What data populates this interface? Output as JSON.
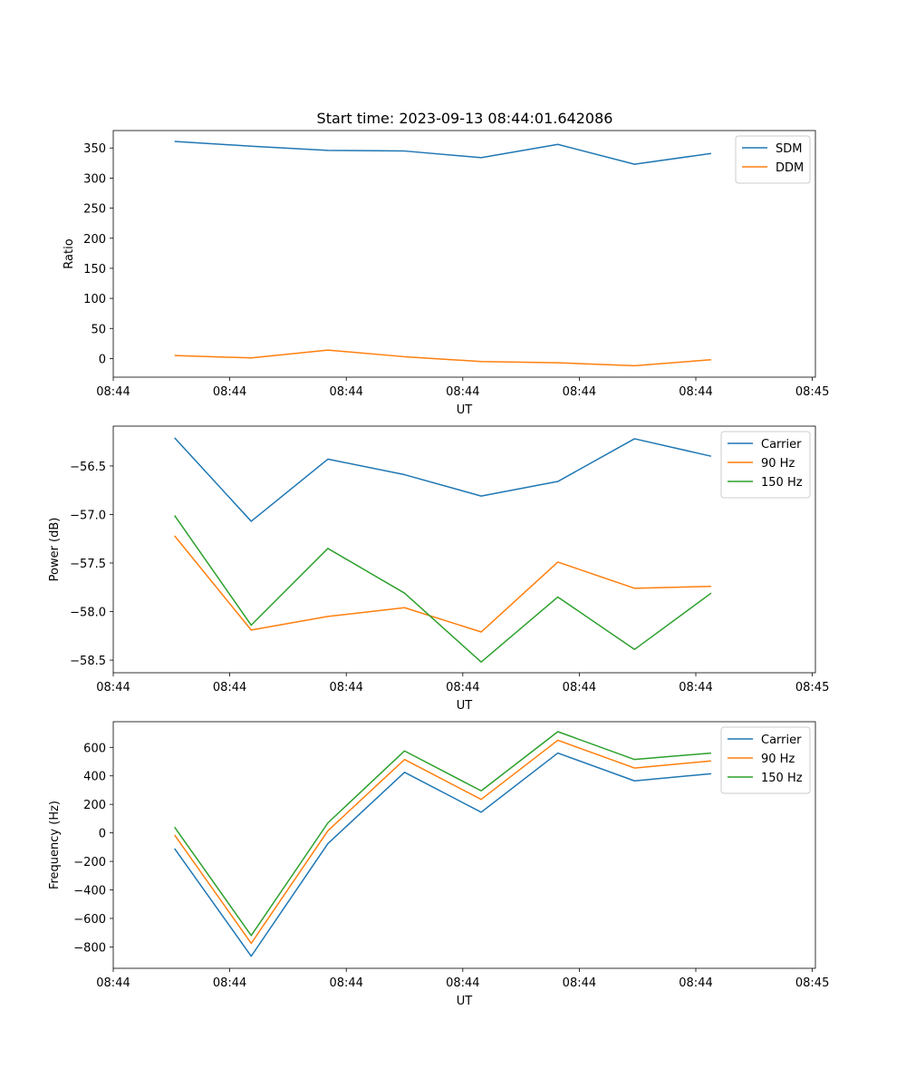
{
  "figure_title": "Start time: 2023-09-13 08:44:01.642086",
  "colors": {
    "blue": "#1f77b4",
    "orange": "#ff7f0e",
    "green": "#2ca02c"
  },
  "chart_data": [
    {
      "type": "line",
      "title": "Start time: 2023-09-13 08:44:01.642086",
      "xlabel": "UT",
      "ylabel": "Ratio",
      "x": [
        1,
        2,
        3,
        4,
        5,
        6,
        7,
        8
      ],
      "xlim": [
        0.2,
        9.36
      ],
      "xticks": [
        0.2,
        1.72,
        3.24,
        4.76,
        6.28,
        7.8,
        9.32
      ],
      "xtick_labels": [
        "08:44",
        "08:44",
        "08:44",
        "08:44",
        "08:44",
        "08:44",
        "08:45"
      ],
      "ylim": [
        -31,
        379
      ],
      "yticks": [
        0,
        50,
        100,
        150,
        200,
        250,
        300,
        350
      ],
      "ytick_labels": [
        "0",
        "50",
        "100",
        "150",
        "200",
        "250",
        "300",
        "350"
      ],
      "legend_position": "top-right",
      "series": [
        {
          "name": "SDM",
          "color": "#1f77b4",
          "values": [
            361,
            353,
            346,
            345,
            334,
            356,
            323,
            341
          ]
        },
        {
          "name": "DDM",
          "color": "#ff7f0e",
          "values": [
            5,
            1,
            14,
            3,
            -5,
            -7,
            -12,
            -2
          ]
        }
      ]
    },
    {
      "type": "line",
      "title": "",
      "xlabel": "UT",
      "ylabel": "Power (dB)",
      "x": [
        1,
        2,
        3,
        4,
        5,
        6,
        7,
        8
      ],
      "xlim": [
        0.2,
        9.36
      ],
      "xticks": [
        0.2,
        1.72,
        3.24,
        4.76,
        6.28,
        7.8,
        9.32
      ],
      "xtick_labels": [
        "08:44",
        "08:44",
        "08:44",
        "08:44",
        "08:44",
        "08:44",
        "08:45"
      ],
      "ylim": [
        -58.63,
        -56.09
      ],
      "yticks": [
        -58.5,
        -58.0,
        -57.5,
        -57.0,
        -56.5
      ],
      "ytick_labels": [
        "−58.5",
        "−58.0",
        "−57.5",
        "−57.0",
        "−56.5"
      ],
      "legend_position": "top-right",
      "series": [
        {
          "name": "Carrier",
          "color": "#1f77b4",
          "values": [
            -56.21,
            -57.07,
            -56.43,
            -56.59,
            -56.81,
            -56.66,
            -56.22,
            -56.4
          ]
        },
        {
          "name": "90 Hz",
          "color": "#ff7f0e",
          "values": [
            -57.22,
            -58.19,
            -58.05,
            -57.96,
            -58.21,
            -57.49,
            -57.76,
            -57.74
          ]
        },
        {
          "name": "150 Hz",
          "color": "#2ca02c",
          "values": [
            -57.01,
            -58.14,
            -57.35,
            -57.81,
            -58.52,
            -57.85,
            -58.39,
            -57.81
          ]
        }
      ]
    },
    {
      "type": "line",
      "title": "",
      "xlabel": "UT",
      "ylabel": "Frequency (Hz)",
      "x": [
        1,
        2,
        3,
        4,
        5,
        6,
        7,
        8
      ],
      "xlim": [
        0.2,
        9.36
      ],
      "xticks": [
        0.2,
        1.72,
        3.24,
        4.76,
        6.28,
        7.8,
        9.32
      ],
      "xtick_labels": [
        "08:44",
        "08:44",
        "08:44",
        "08:44",
        "08:44",
        "08:44",
        "08:45"
      ],
      "ylim": [
        -950,
        780
      ],
      "yticks": [
        -800,
        -600,
        -400,
        -200,
        0,
        200,
        400,
        600
      ],
      "ytick_labels": [
        "−800",
        "−600",
        "−400",
        "−200",
        "0",
        "200",
        "400",
        "600"
      ],
      "legend_position": "top-right",
      "series": [
        {
          "name": "Carrier",
          "color": "#1f77b4",
          "values": [
            -110,
            -865,
            -75,
            425,
            145,
            560,
            365,
            415
          ]
        },
        {
          "name": "90 Hz",
          "color": "#ff7f0e",
          "values": [
            -15,
            -775,
            15,
            515,
            235,
            650,
            455,
            505
          ]
        },
        {
          "name": "150 Hz",
          "color": "#2ca02c",
          "values": [
            40,
            -720,
            70,
            575,
            295,
            710,
            515,
            560
          ]
        }
      ]
    }
  ]
}
